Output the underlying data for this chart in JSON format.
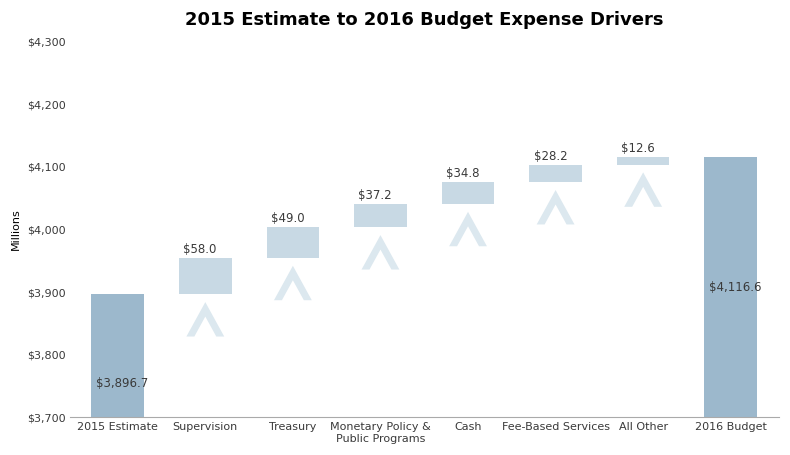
{
  "title": "2015 Estimate to 2016 Budget Expense Drivers",
  "ylabel": "Millions",
  "categories": [
    "2015 Estimate",
    "Supervision",
    "Treasury",
    "Monetary Policy &\nPublic Programs",
    "Cash",
    "Fee-Based Services",
    "All Other",
    "2016 Budget"
  ],
  "values": [
    3896.7,
    58.0,
    49.0,
    37.2,
    34.8,
    28.2,
    12.6,
    4116.6
  ],
  "bar_color_solid": "#9cb8cc",
  "bar_color_incremental": "#c8d9e4",
  "bar_color_chevron": "#dce8ef",
  "ylim_min": 3700,
  "ylim_max": 4300,
  "yticks": [
    3700,
    3800,
    3900,
    4000,
    4100,
    4200,
    4300
  ],
  "ytick_labels": [
    "$3,700",
    "$3,800",
    "$3,900",
    "$4,000",
    "$4,100",
    "$4,200",
    "$4,300"
  ],
  "value_labels": [
    "$3,896.7",
    "$58.0",
    "$49.0",
    "$37.2",
    "$34.8",
    "$28.2",
    "$12.6",
    "$4,116.6"
  ],
  "title_fontsize": 13,
  "axis_fontsize": 8,
  "label_fontsize": 8.5,
  "background_color": "#ffffff"
}
